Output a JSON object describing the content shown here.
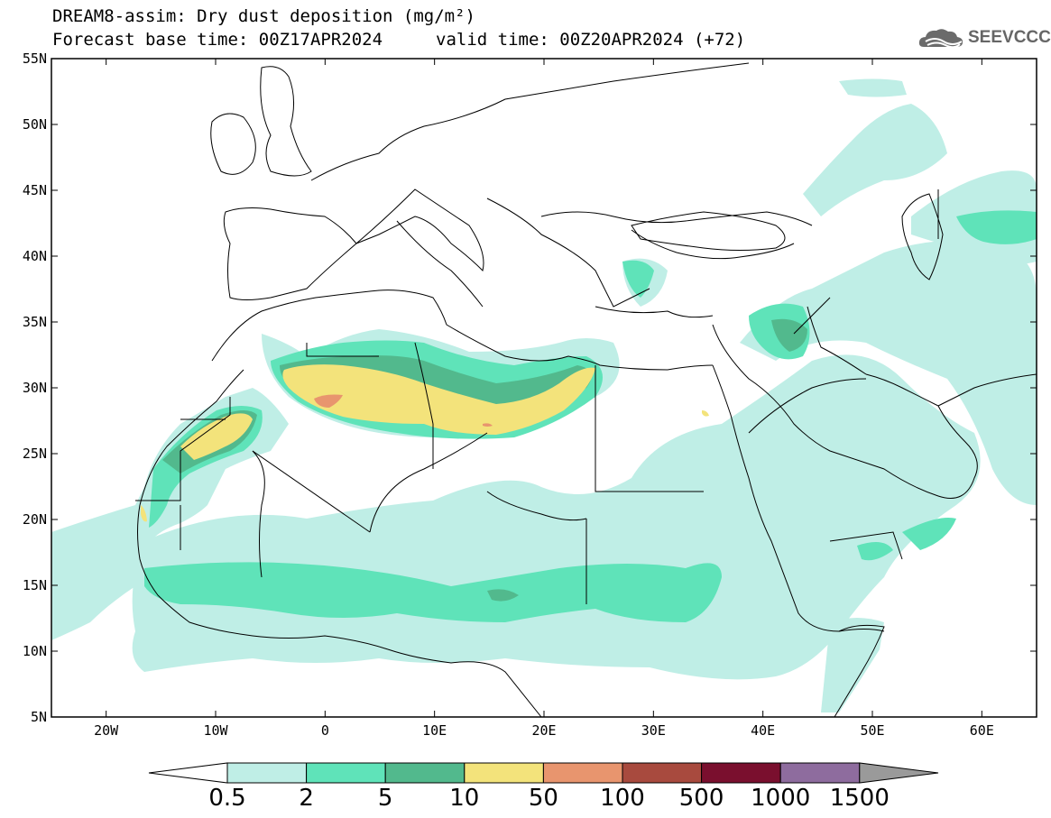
{
  "header": {
    "line1": "DREAM8-assim: Dry dust deposition (mg/m²)",
    "base_time": "Forecast base time: 00Z17APR2024",
    "valid_time": "valid time: 00Z20APR2024 (+72)",
    "logo_text": "SEEVCCC",
    "logo_icon": "cloud-logo-icon"
  },
  "map": {
    "lon_range": [
      -25,
      65
    ],
    "lat_range": [
      5,
      55
    ],
    "lat_ticks": [
      {
        "value": 55,
        "label": "55N"
      },
      {
        "value": 50,
        "label": "50N"
      },
      {
        "value": 45,
        "label": "45N"
      },
      {
        "value": 40,
        "label": "40N"
      },
      {
        "value": 35,
        "label": "35N"
      },
      {
        "value": 30,
        "label": "30N"
      },
      {
        "value": 25,
        "label": "25N"
      },
      {
        "value": 20,
        "label": "20N"
      },
      {
        "value": 15,
        "label": "15N"
      },
      {
        "value": 10,
        "label": "10N"
      },
      {
        "value": 5,
        "label": "5N"
      }
    ],
    "lon_ticks": [
      {
        "value": -20,
        "label": "20W"
      },
      {
        "value": -10,
        "label": "10W"
      },
      {
        "value": 0,
        "label": "0"
      },
      {
        "value": 10,
        "label": "10E"
      },
      {
        "value": 20,
        "label": "20E"
      },
      {
        "value": 30,
        "label": "30E"
      },
      {
        "value": 40,
        "label": "40E"
      },
      {
        "value": 50,
        "label": "50E"
      },
      {
        "value": 60,
        "label": "60E"
      }
    ]
  },
  "colorbar": {
    "labels": [
      "0.5",
      "2",
      "5",
      "10",
      "50",
      "100",
      "500",
      "1000",
      "1500"
    ],
    "colors": [
      "#bfeee6",
      "#5fe3b9",
      "#52b98d",
      "#f3e37b",
      "#e8956e",
      "#a84a3e",
      "#7a0f2e",
      "#8e6c9e"
    ],
    "under_color": "#ffffff",
    "over_color": "#9a9a9a"
  },
  "colors": {
    "level1": "#bfeee6",
    "level2": "#5fe3b9",
    "level3": "#52b98d",
    "level4": "#f3e37b",
    "level5": "#e8956e",
    "coast": "#000000"
  }
}
